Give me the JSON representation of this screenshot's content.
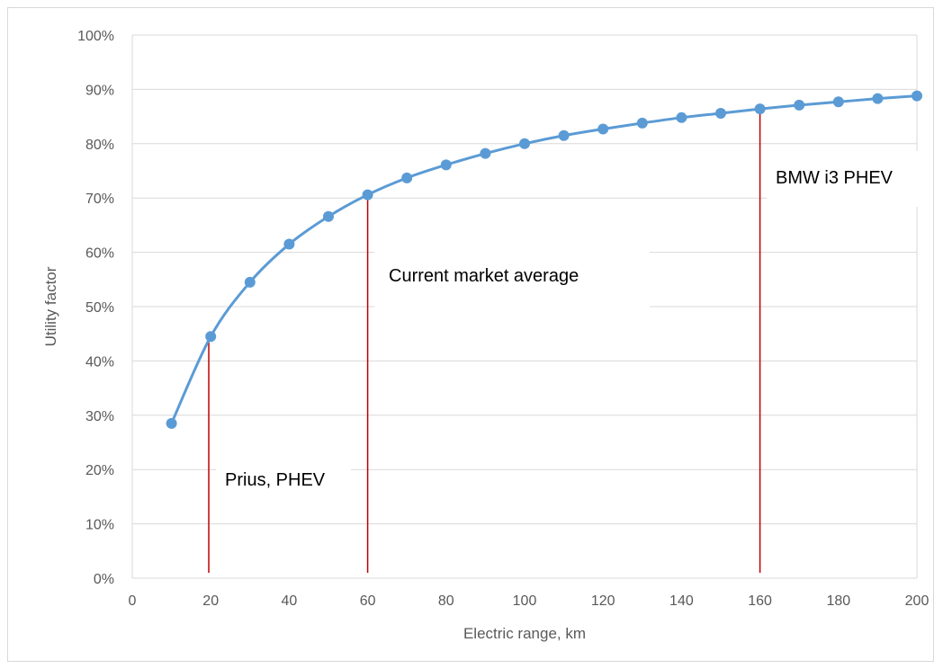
{
  "chart_data": {
    "type": "line",
    "title": "",
    "xlabel": "Electric range, km",
    "ylabel": "Utility factor",
    "xlim": [
      0,
      200
    ],
    "ylim": [
      0,
      100
    ],
    "x_ticks": [
      "0",
      "20",
      "40",
      "60",
      "80",
      "100",
      "120",
      "140",
      "160",
      "180",
      "200"
    ],
    "y_ticks": [
      "0%",
      "10%",
      "20%",
      "30%",
      "40%",
      "50%",
      "60%",
      "70%",
      "80%",
      "90%",
      "100%"
    ],
    "grid": "horizontal",
    "legend": "none",
    "series": [
      {
        "x": [
          10,
          20,
          30,
          40,
          50,
          60,
          70,
          80,
          90,
          100,
          110,
          120,
          130,
          140,
          150,
          160,
          170,
          180,
          190,
          200
        ],
        "y": [
          28.5,
          44.5,
          54.5,
          61.5,
          66.6,
          70.6,
          73.7,
          76.1,
          78.2,
          80.0,
          81.5,
          82.7,
          83.8,
          84.8,
          85.6,
          86.4,
          87.1,
          87.7,
          88.3,
          88.8
        ],
        "color": "#5B9BD5"
      }
    ],
    "reference_lines": [
      {
        "x": 19.5,
        "label": "Prius, PHEV",
        "color": "#C00000"
      },
      {
        "x": 60,
        "label": "Current market average",
        "color": "#C00000"
      },
      {
        "x": 160,
        "label": "BMW i3 PHEV",
        "color": "#C00000"
      }
    ]
  }
}
